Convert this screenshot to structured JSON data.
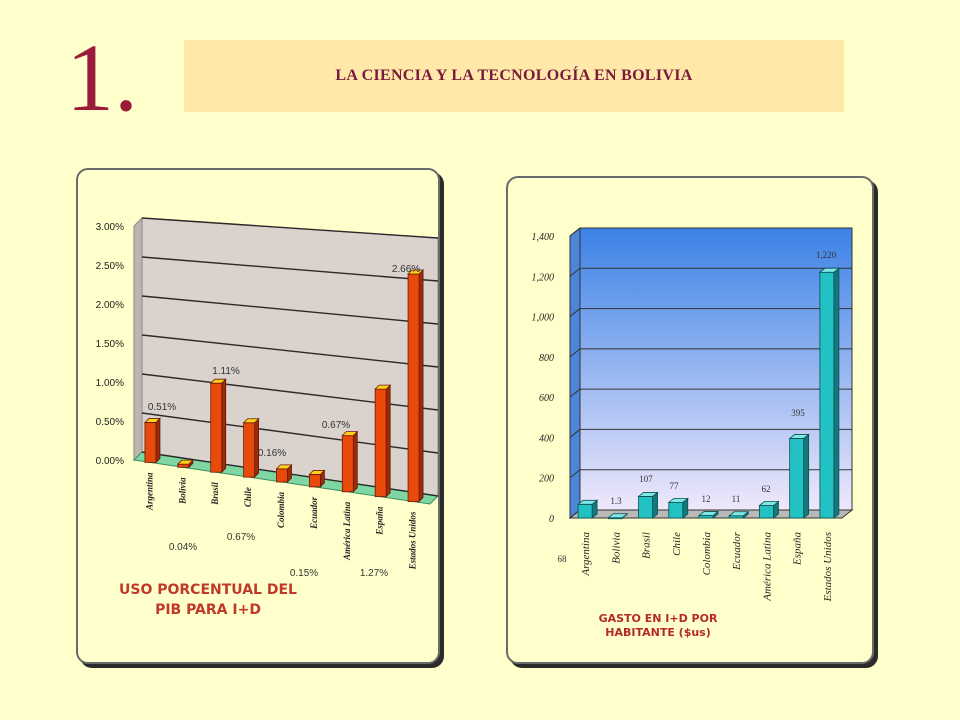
{
  "header": {
    "slide_number": "1.",
    "title": "LA CIENCIA Y LA TECNOLOGÍA EN BOLIVIA"
  },
  "colors": {
    "background": "#ffffcc",
    "title_box": "#ffe8a8",
    "accent": "#9b1b3a",
    "caption_left": "#c0392b",
    "caption_right": "#b5282b",
    "bar_left_front": "#e84a0c",
    "bar_left_top": "#ffd21a",
    "bar_right_front": "#22c1c3",
    "bar_right_top": "#7fe7e6"
  },
  "left_panel": {
    "caption": [
      "USO PORCENTUAL DEL",
      "PIB PARA I+D"
    ]
  },
  "right_panel": {
    "caption": [
      "GASTO EN I+D POR",
      "HABITANTE ($us)"
    ]
  },
  "chart_data": [
    {
      "type": "bar",
      "categories": [
        "Argentina",
        "Bolivia",
        "Brasil",
        "Chile",
        "Colombia",
        "Ecuador",
        "América Latina",
        "España",
        "Estados Unidos"
      ],
      "values": [
        0.51,
        0.04,
        1.11,
        0.67,
        0.16,
        0.15,
        0.67,
        1.27,
        2.66
      ],
      "data_labels": [
        "0.51%",
        "0.04%",
        "1.11%",
        "0.67%",
        "0.16%",
        "0.15%",
        "0.67%",
        "1.27%",
        "2.66%"
      ],
      "yticks": [
        "0.00%",
        "0.50%",
        "1.00%",
        "1.50%",
        "2.00%",
        "2.50%",
        "3.00%"
      ],
      "ylim": [
        0,
        3
      ],
      "title": "USO PORCENTUAL DEL PIB PARA I+D",
      "grid": true
    },
    {
      "type": "bar",
      "categories": [
        "Argentina",
        "Bolivia",
        "Brasil",
        "Chile",
        "Colombia",
        "Ecuador",
        "América Latina",
        "España",
        "Estados Unidos"
      ],
      "values": [
        68,
        1.3,
        107,
        77,
        12,
        11,
        62,
        395,
        1220
      ],
      "data_labels": [
        "68",
        "1.3",
        "107",
        "77",
        "12",
        "11",
        "62",
        "395",
        "1,220"
      ],
      "yticks": [
        "0",
        "200",
        "400",
        "600",
        "800",
        "1,000",
        "1,200",
        "1,400"
      ],
      "ylim": [
        0,
        1400
      ],
      "title": "GASTO EN I+D POR HABITANTE ($us)",
      "grid": true
    }
  ]
}
